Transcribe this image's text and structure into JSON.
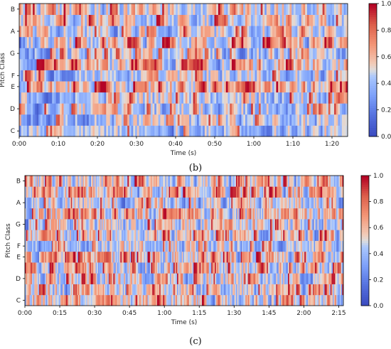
{
  "chart_data": [
    {
      "type": "heatmap",
      "panel_label": "(b)",
      "xlabel": "Time (s)",
      "ylabel": "Pitch Class",
      "categories": [
        "C",
        "D",
        "E",
        "F",
        "G",
        "A",
        "B"
      ],
      "x_ticks": [
        "0:00",
        "0:10",
        "0:20",
        "0:30",
        "0:40",
        "0:50",
        "1:00",
        "1:10",
        "1:20"
      ],
      "x_range_seconds": [
        0,
        84
      ],
      "colorbar": {
        "range": [
          0,
          1
        ],
        "ticks": [
          "0.0",
          "0.2",
          "0.4",
          "0.6",
          "0.8",
          "1.0"
        ],
        "colormap": "coolwarm"
      },
      "low_color": "#3b4cc0",
      "mid_color": "#dddddd",
      "high_color": "#b40426",
      "n_frames": 170
    },
    {
      "type": "heatmap",
      "panel_label": "(c)",
      "xlabel": "Time (s)",
      "ylabel": "Pitch Class",
      "categories": [
        "C",
        "D",
        "E",
        "F",
        "G",
        "A",
        "B"
      ],
      "x_ticks": [
        "0:00",
        "0:15",
        "0:30",
        "0:45",
        "1:00",
        "1:15",
        "1:30",
        "1:45",
        "2:00",
        "2:15"
      ],
      "x_range_seconds": [
        0,
        137
      ],
      "colorbar": {
        "range": [
          0,
          1
        ],
        "ticks": [
          "0.0",
          "0.2",
          "0.4",
          "0.6",
          "0.8",
          "1.0"
        ],
        "colormap": "coolwarm"
      },
      "low_color": "#3b4cc0",
      "mid_color": "#dddddd",
      "high_color": "#b40426",
      "n_frames": 270
    }
  ]
}
